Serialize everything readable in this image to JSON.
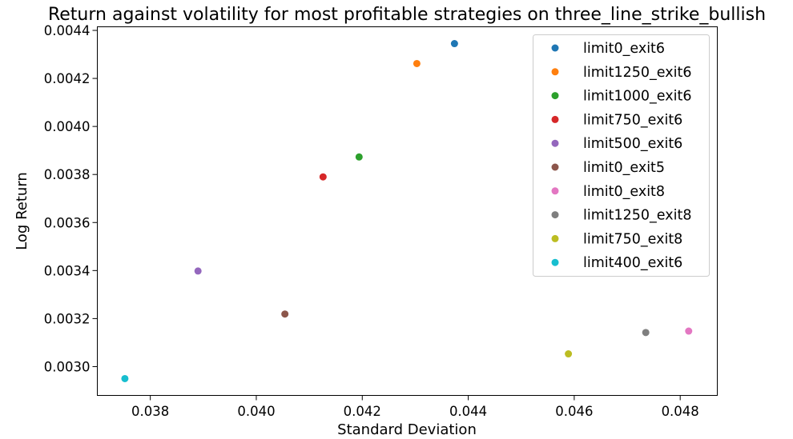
{
  "chart_data": {
    "type": "scatter",
    "title": "Return against volatility for most profitable strategies on three_line_strike_bullish",
    "xlabel": "Standard Deviation",
    "ylabel": "Log Return",
    "xlim": [
      0.037,
      0.0487
    ],
    "ylim": [
      0.00288,
      0.004415
    ],
    "xticks": [
      0.038,
      0.04,
      0.042,
      0.044,
      0.046,
      0.048
    ],
    "xtick_labels": [
      "0.038",
      "0.040",
      "0.042",
      "0.044",
      "0.046",
      "0.048"
    ],
    "yticks": [
      0.003,
      0.0032,
      0.0034,
      0.0036,
      0.0038,
      0.004,
      0.0042,
      0.0044
    ],
    "ytick_labels": [
      "0.0030",
      "0.0032",
      "0.0034",
      "0.0036",
      "0.0038",
      "0.0040",
      "0.0042",
      "0.0044"
    ],
    "grid": false,
    "legend_position": "top-right",
    "series": [
      {
        "name": "limit0_exit6",
        "x": 0.04374,
        "y": 0.004345,
        "color": "#1f77b4"
      },
      {
        "name": "limit1250_exit6",
        "x": 0.04303,
        "y": 0.004262,
        "color": "#ff7f0e"
      },
      {
        "name": "limit1000_exit6",
        "x": 0.04194,
        "y": 0.003873,
        "color": "#2ca02c"
      },
      {
        "name": "limit750_exit6",
        "x": 0.04126,
        "y": 0.00379,
        "color": "#d62728"
      },
      {
        "name": "limit500_exit6",
        "x": 0.0389,
        "y": 0.003398,
        "color": "#9467bd"
      },
      {
        "name": "limit0_exit5",
        "x": 0.04054,
        "y": 0.003219,
        "color": "#8c564b"
      },
      {
        "name": "limit0_exit8",
        "x": 0.04816,
        "y": 0.003148,
        "color": "#e377c2"
      },
      {
        "name": "limit1250_exit8",
        "x": 0.04735,
        "y": 0.003142,
        "color": "#7f7f7f"
      },
      {
        "name": "limit750_exit8",
        "x": 0.04589,
        "y": 0.003053,
        "color": "#bcbd22"
      },
      {
        "name": "limit400_exit6",
        "x": 0.03752,
        "y": 0.00295,
        "color": "#17becf"
      }
    ]
  }
}
